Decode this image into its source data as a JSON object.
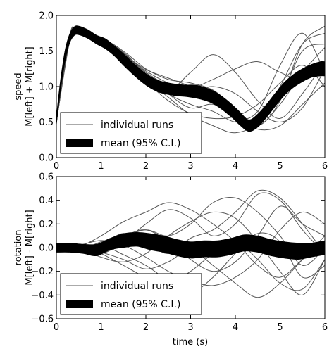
{
  "chart_data": [
    {
      "type": "line",
      "ylabel_lines": [
        "speed",
        "M[left] + M[right]"
      ],
      "xlabel": "",
      "xlim": [
        0,
        6
      ],
      "ylim": [
        0.0,
        2.0
      ],
      "xticks": [
        "0",
        "1",
        "2",
        "3",
        "4",
        "5",
        "6"
      ],
      "yticks": [
        "0.0",
        "0.5",
        "1.0",
        "1.5",
        "2.0"
      ],
      "grid": false,
      "legend_position": "bottom-left",
      "legend": [
        {
          "label": "individual runs",
          "style": "thin-line"
        },
        {
          "label": "mean (95% C.I.)",
          "style": "thick-band"
        }
      ],
      "mean": {
        "x": [
          0.0,
          0.1,
          0.2,
          0.3,
          0.4,
          0.5,
          0.7,
          0.9,
          1.1,
          1.3,
          1.5,
          1.7,
          1.9,
          2.1,
          2.3,
          2.5,
          2.7,
          2.9,
          3.1,
          3.3,
          3.5,
          3.7,
          3.9,
          4.1,
          4.3,
          4.5,
          4.7,
          4.9,
          5.1,
          5.3,
          5.5,
          5.7,
          5.9,
          6.0
        ],
        "y": [
          0.52,
          1.05,
          1.45,
          1.68,
          1.78,
          1.79,
          1.74,
          1.66,
          1.6,
          1.5,
          1.38,
          1.26,
          1.15,
          1.06,
          1.0,
          0.97,
          0.95,
          0.94,
          0.93,
          0.9,
          0.85,
          0.77,
          0.67,
          0.55,
          0.45,
          0.52,
          0.66,
          0.82,
          0.97,
          1.08,
          1.16,
          1.22,
          1.25,
          1.25
        ],
        "ci_low": [
          0.5,
          1.02,
          1.41,
          1.65,
          1.75,
          1.76,
          1.71,
          1.63,
          1.56,
          1.46,
          1.33,
          1.21,
          1.1,
          1.01,
          0.95,
          0.92,
          0.9,
          0.89,
          0.87,
          0.84,
          0.79,
          0.71,
          0.61,
          0.49,
          0.4,
          0.46,
          0.6,
          0.76,
          0.91,
          1.02,
          1.1,
          1.16,
          1.18,
          1.18
        ],
        "ci_high": [
          0.54,
          1.08,
          1.49,
          1.71,
          1.81,
          1.82,
          1.77,
          1.69,
          1.64,
          1.54,
          1.43,
          1.31,
          1.2,
          1.11,
          1.05,
          1.02,
          1.0,
          0.99,
          0.99,
          0.96,
          0.91,
          0.83,
          0.73,
          0.61,
          0.5,
          0.58,
          0.72,
          0.88,
          1.03,
          1.14,
          1.22,
          1.28,
          1.32,
          1.32
        ]
      },
      "runs": [
        {
          "x": [
            0.0,
            0.3,
            0.45,
            0.8,
            1.2,
            1.6,
            2.0,
            2.5,
            3.0,
            3.5,
            4.0,
            4.5,
            5.0,
            5.5,
            6.0
          ],
          "y": [
            0.55,
            1.7,
            1.82,
            1.72,
            1.58,
            1.38,
            1.18,
            1.0,
            0.92,
            0.8,
            0.55,
            0.65,
            1.3,
            1.75,
            1.2
          ]
        },
        {
          "x": [
            0.0,
            0.3,
            0.45,
            0.8,
            1.2,
            1.6,
            2.0,
            2.5,
            3.0,
            3.5,
            4.0,
            4.5,
            5.0,
            5.5,
            6.0
          ],
          "y": [
            0.5,
            1.65,
            1.78,
            1.68,
            1.62,
            1.45,
            1.25,
            1.1,
            1.05,
            0.95,
            0.7,
            0.45,
            0.8,
            1.6,
            1.85
          ]
        },
        {
          "x": [
            0.0,
            0.3,
            0.45,
            0.8,
            1.2,
            1.6,
            2.0,
            2.5,
            3.0,
            3.5,
            4.0,
            4.5,
            5.0,
            5.5,
            6.0
          ],
          "y": [
            0.52,
            1.72,
            1.8,
            1.7,
            1.55,
            1.35,
            1.1,
            0.85,
            0.6,
            0.45,
            0.35,
            0.5,
            1.0,
            1.6,
            1.75
          ]
        },
        {
          "x": [
            0.0,
            0.3,
            0.45,
            0.8,
            1.2,
            1.6,
            2.0,
            2.5,
            3.0,
            3.5,
            4.0,
            4.5,
            5.0,
            5.5,
            6.0
          ],
          "y": [
            0.54,
            1.68,
            1.81,
            1.74,
            1.6,
            1.4,
            1.15,
            0.95,
            1.2,
            1.45,
            1.2,
            0.8,
            0.55,
            0.9,
            1.35
          ]
        },
        {
          "x": [
            0.0,
            0.3,
            0.45,
            0.8,
            1.2,
            1.6,
            2.0,
            2.5,
            3.0,
            3.5,
            4.0,
            4.5,
            5.0,
            5.5,
            6.0
          ],
          "y": [
            0.5,
            1.7,
            1.79,
            1.66,
            1.6,
            1.42,
            1.2,
            0.9,
            0.7,
            0.75,
            0.6,
            0.4,
            0.45,
            0.75,
            1.05
          ]
        },
        {
          "x": [
            0.0,
            0.3,
            0.45,
            0.8,
            1.2,
            1.6,
            2.0,
            2.5,
            3.0,
            3.5,
            4.0,
            4.5,
            5.0,
            5.5,
            6.0
          ],
          "y": [
            0.53,
            1.66,
            1.77,
            1.69,
            1.56,
            1.4,
            1.22,
            1.05,
            0.95,
            1.0,
            0.9,
            0.65,
            0.5,
            0.7,
            1.25
          ]
        },
        {
          "x": [
            0.0,
            0.3,
            0.45,
            0.8,
            1.2,
            1.6,
            2.0,
            2.5,
            3.0,
            3.5,
            4.0,
            4.5,
            5.0,
            5.5,
            6.0
          ],
          "y": [
            0.51,
            1.69,
            1.8,
            1.71,
            1.59,
            1.36,
            1.08,
            0.8,
            0.62,
            0.55,
            0.58,
            0.75,
            1.05,
            1.3,
            1.0
          ]
        },
        {
          "x": [
            0.0,
            0.3,
            0.45,
            0.8,
            1.2,
            1.6,
            2.0,
            2.5,
            3.0,
            3.5,
            4.0,
            4.5,
            5.0,
            5.5,
            6.0
          ],
          "y": [
            0.52,
            1.71,
            1.81,
            1.73,
            1.57,
            1.39,
            1.2,
            1.02,
            0.98,
            1.1,
            1.25,
            1.35,
            1.2,
            1.1,
            1.3
          ]
        },
        {
          "x": [
            0.0,
            0.3,
            0.45,
            0.8,
            1.2,
            1.6,
            2.0,
            2.5,
            3.0,
            3.5,
            4.0,
            4.5,
            5.0,
            5.5,
            6.0
          ],
          "y": [
            0.53,
            1.67,
            1.79,
            1.7,
            1.61,
            1.43,
            1.17,
            0.9,
            0.75,
            0.65,
            0.5,
            0.55,
            0.85,
            1.5,
            1.6
          ]
        },
        {
          "x": [
            0.0,
            0.3,
            0.45,
            0.8,
            1.2,
            1.6,
            2.0,
            2.5,
            3.0,
            3.5,
            4.0,
            4.5,
            5.0,
            5.5,
            6.0
          ],
          "y": [
            0.5,
            1.69,
            1.78,
            1.67,
            1.58,
            1.41,
            1.24,
            1.12,
            1.0,
            0.85,
            0.6,
            0.45,
            0.75,
            1.2,
            1.55
          ]
        }
      ]
    },
    {
      "type": "line",
      "ylabel_lines": [
        "rotation",
        "M[left] - M[right]"
      ],
      "xlabel": "time (s)",
      "xlim": [
        0,
        6
      ],
      "ylim": [
        -0.6,
        0.6
      ],
      "xticks": [
        "0",
        "1",
        "2",
        "3",
        "4",
        "5",
        "6"
      ],
      "yticks": [
        "−0.6",
        "−0.4",
        "−0.2",
        "0.0",
        "0.2",
        "0.4",
        "0.6"
      ],
      "grid": false,
      "legend_position": "bottom-left",
      "legend": [
        {
          "label": "individual runs",
          "style": "thin-line"
        },
        {
          "label": "mean (95% C.I.)",
          "style": "thick-band"
        }
      ],
      "mean": {
        "x": [
          0.0,
          0.3,
          0.6,
          0.9,
          1.2,
          1.5,
          1.8,
          2.1,
          2.4,
          2.7,
          3.0,
          3.3,
          3.6,
          3.9,
          4.2,
          4.5,
          4.8,
          5.1,
          5.4,
          5.7,
          6.0
        ],
        "y": [
          0.0,
          0.0,
          -0.01,
          -0.02,
          0.03,
          0.06,
          0.07,
          0.05,
          0.03,
          0.0,
          -0.02,
          -0.01,
          -0.01,
          0.01,
          0.04,
          0.03,
          0.0,
          -0.02,
          -0.03,
          -0.02,
          0.0
        ],
        "ci_low": [
          -0.02,
          -0.02,
          -0.03,
          -0.05,
          0.0,
          0.02,
          0.03,
          0.0,
          -0.02,
          -0.05,
          -0.07,
          -0.06,
          -0.06,
          -0.04,
          -0.01,
          -0.02,
          -0.05,
          -0.07,
          -0.08,
          -0.06,
          -0.04
        ],
        "ci_high": [
          0.02,
          0.02,
          0.01,
          0.01,
          0.06,
          0.1,
          0.11,
          0.1,
          0.08,
          0.05,
          0.03,
          0.04,
          0.04,
          0.06,
          0.09,
          0.08,
          0.05,
          0.03,
          0.02,
          0.02,
          0.04
        ]
      },
      "runs": [
        {
          "x": [
            0.0,
            0.5,
            1.0,
            1.5,
            2.0,
            2.5,
            3.0,
            3.5,
            4.0,
            4.5,
            5.0,
            5.5,
            6.0
          ],
          "y": [
            0.0,
            0.0,
            -0.05,
            0.05,
            0.2,
            0.32,
            0.25,
            0.1,
            0.2,
            0.45,
            0.4,
            0.15,
            -0.05
          ]
        },
        {
          "x": [
            0.0,
            0.5,
            1.0,
            1.5,
            2.0,
            2.5,
            3.0,
            3.5,
            4.0,
            4.5,
            5.0,
            5.5,
            6.0
          ],
          "y": [
            0.0,
            -0.02,
            0.05,
            0.1,
            0.15,
            0.05,
            -0.1,
            -0.2,
            -0.12,
            0.1,
            0.35,
            0.2,
            0.1
          ]
        },
        {
          "x": [
            0.0,
            0.5,
            1.0,
            1.5,
            2.0,
            2.5,
            3.0,
            3.5,
            4.0,
            4.5,
            5.0,
            5.5,
            6.0
          ],
          "y": [
            0.0,
            0.02,
            -0.05,
            -0.15,
            -0.25,
            -0.3,
            -0.2,
            -0.05,
            0.05,
            -0.1,
            -0.3,
            -0.35,
            -0.1
          ]
        },
        {
          "x": [
            0.0,
            0.5,
            1.0,
            1.5,
            2.0,
            2.5,
            3.0,
            3.5,
            4.0,
            4.5,
            5.0,
            5.5,
            6.0
          ],
          "y": [
            0.0,
            0.01,
            0.1,
            0.22,
            0.3,
            0.38,
            0.32,
            0.2,
            0.05,
            -0.15,
            -0.25,
            -0.1,
            0.05
          ]
        },
        {
          "x": [
            0.0,
            0.5,
            1.0,
            1.5,
            2.0,
            2.5,
            3.0,
            3.5,
            4.0,
            4.5,
            5.0,
            5.5,
            6.0
          ],
          "y": [
            0.0,
            -0.01,
            -0.08,
            -0.12,
            -0.05,
            0.1,
            0.22,
            0.3,
            0.25,
            0.05,
            -0.2,
            -0.4,
            -0.1
          ]
        },
        {
          "x": [
            0.0,
            0.5,
            1.0,
            1.5,
            2.0,
            2.5,
            3.0,
            3.5,
            4.0,
            4.5,
            5.0,
            5.5,
            6.0
          ],
          "y": [
            0.0,
            0.02,
            0.06,
            0.02,
            -0.08,
            -0.2,
            -0.28,
            -0.32,
            -0.25,
            -0.1,
            0.15,
            0.3,
            0.2
          ]
        },
        {
          "x": [
            0.0,
            0.5,
            1.0,
            1.5,
            2.0,
            2.5,
            3.0,
            3.5,
            4.0,
            4.5,
            5.0,
            5.5,
            6.0
          ],
          "y": [
            0.0,
            -0.02,
            -0.03,
            0.08,
            0.15,
            0.1,
            0.2,
            0.38,
            0.42,
            0.3,
            0.1,
            -0.15,
            0.0
          ]
        },
        {
          "x": [
            0.0,
            0.5,
            1.0,
            1.5,
            2.0,
            2.5,
            3.0,
            3.5,
            4.0,
            4.5,
            5.0,
            5.5,
            6.0
          ],
          "y": [
            0.0,
            0.0,
            -0.04,
            -0.1,
            -0.18,
            -0.12,
            -0.02,
            -0.15,
            -0.3,
            -0.42,
            -0.3,
            -0.1,
            0.1
          ]
        },
        {
          "x": [
            0.0,
            0.5,
            1.0,
            1.5,
            2.0,
            2.5,
            3.0,
            3.5,
            4.0,
            4.5,
            5.0,
            5.5,
            6.0
          ],
          "y": [
            0.0,
            0.01,
            0.03,
            0.12,
            0.05,
            -0.05,
            0.08,
            0.15,
            0.3,
            0.48,
            0.42,
            0.2,
            -0.05
          ]
        },
        {
          "x": [
            0.0,
            0.5,
            1.0,
            1.5,
            2.0,
            2.5,
            3.0,
            3.5,
            4.0,
            4.5,
            5.0,
            5.5,
            6.0
          ],
          "y": [
            0.0,
            -0.01,
            0.02,
            -0.06,
            -0.15,
            -0.28,
            -0.38,
            -0.25,
            -0.05,
            0.12,
            0.05,
            -0.25,
            -0.15
          ]
        }
      ]
    }
  ]
}
